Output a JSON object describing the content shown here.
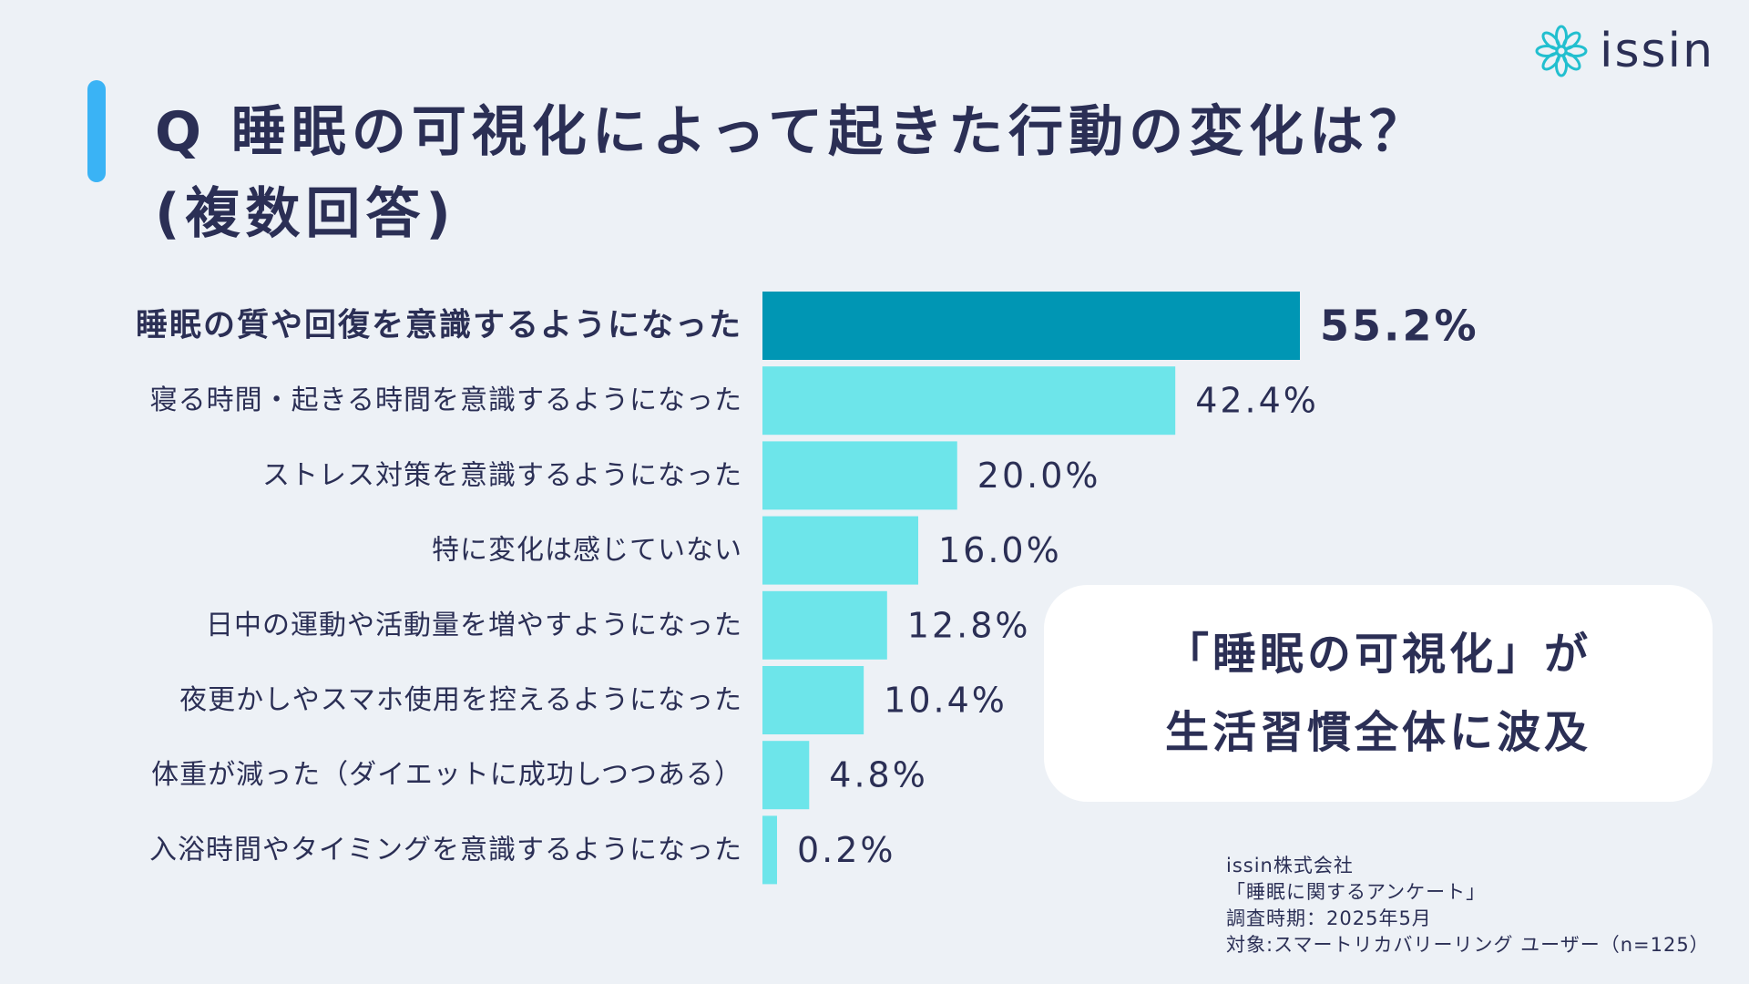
{
  "brand": {
    "name": "issin"
  },
  "colors": {
    "accent": "#3ab3f5",
    "highlight_bar": "#0096b4",
    "bar": "#6de5ea",
    "text": "#2b2f55"
  },
  "chart_data": {
    "type": "bar",
    "orientation": "horizontal",
    "title_lines": [
      "Q 睡眠の可視化によって起きた行動の変化は？",
      "(複数回答)"
    ],
    "categories": [
      "睡眠の質や回復を意識するようになった",
      "寝る時間・起きる時間を意識するようになった",
      "ストレス対策を意識するようになった",
      "特に変化は感じていない",
      "日中の運動や活動量を増やすようになった",
      "夜更かしやスマホ使用を控えるようになった",
      "体重が減った（ダイエットに成功しつつある）",
      "入浴時間やタイミングを意識するようになった"
    ],
    "values": [
      55.2,
      42.4,
      20.0,
      16.0,
      12.8,
      10.4,
      4.8,
      0.2
    ],
    "value_labels": [
      "55.2%",
      "42.4%",
      "20.0%",
      "16.0%",
      "12.8%",
      "10.4%",
      "4.8%",
      "0.2%"
    ],
    "highlight_index": 0,
    "xlim": [
      0,
      100
    ],
    "grid": false,
    "legend": "none"
  },
  "callout": {
    "line1": "「睡眠の可視化」が",
    "line2": "生活習慣全体に波及"
  },
  "source": {
    "company": "issin株式会社",
    "survey": "「睡眠に関するアンケート」",
    "period": "調査時期：2025年5月",
    "target": "対象:スマートリカバリーリング ユーザー（n=125）"
  }
}
